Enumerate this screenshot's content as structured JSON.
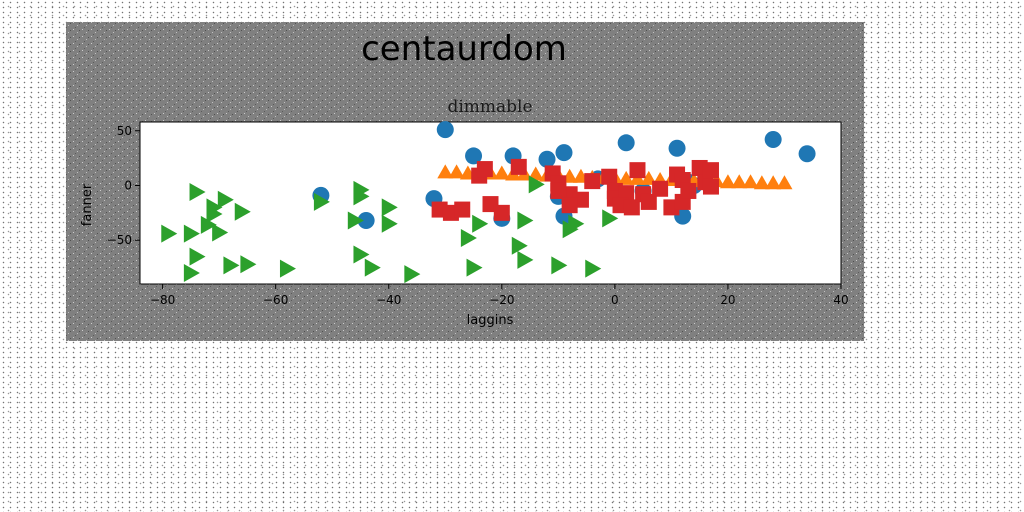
{
  "figure": {
    "suptitle": "centaurdom"
  },
  "chart_data": {
    "type": "scatter",
    "title": "dimmable",
    "xlabel": "laggins",
    "ylabel": "fanner",
    "xlim": [
      -84,
      40
    ],
    "ylim": [
      -90,
      58
    ],
    "xticks": [
      -80,
      -60,
      -40,
      -20,
      0,
      20,
      40
    ],
    "yticks": [
      -50,
      0,
      50
    ],
    "grid": false,
    "legend": "none",
    "colors": {
      "figure_bg": "#808080",
      "axes_bg": "#ffffff",
      "blue": "#1f77b4",
      "orange": "#ff7f0e",
      "green": "#2ca02c",
      "red": "#d62728"
    },
    "series": [
      {
        "marker": "circle",
        "color": "#1f77b4",
        "points": [
          [
            -30,
            51
          ],
          [
            -25,
            27
          ],
          [
            -18,
            27
          ],
          [
            -12,
            24
          ],
          [
            -9,
            30
          ],
          [
            2,
            39
          ],
          [
            11,
            34
          ],
          [
            28,
            42
          ],
          [
            34,
            29
          ],
          [
            -52,
            -9
          ],
          [
            -32,
            -12
          ],
          [
            -44,
            -32
          ],
          [
            -20,
            -30
          ],
          [
            -10,
            -10
          ],
          [
            -9,
            -28
          ],
          [
            -3,
            6
          ],
          [
            5,
            -5
          ],
          [
            12,
            -28
          ],
          [
            13,
            3
          ],
          [
            14,
            0
          ]
        ]
      },
      {
        "marker": "triangle-up",
        "color": "#ff7f0e",
        "points": [
          [
            -30,
            12
          ],
          [
            -28,
            12
          ],
          [
            -26,
            11
          ],
          [
            -24,
            11
          ],
          [
            -22,
            11
          ],
          [
            -20,
            11
          ],
          [
            -18,
            10
          ],
          [
            -16,
            10
          ],
          [
            -14,
            10
          ],
          [
            -12,
            9
          ],
          [
            -10,
            9
          ],
          [
            -8,
            8
          ],
          [
            -6,
            8
          ],
          [
            -4,
            7
          ],
          [
            -2,
            7
          ],
          [
            0,
            7
          ],
          [
            2,
            6
          ],
          [
            4,
            6
          ],
          [
            6,
            6
          ],
          [
            8,
            5
          ],
          [
            10,
            5
          ],
          [
            12,
            5
          ],
          [
            14,
            4
          ],
          [
            16,
            4
          ],
          [
            18,
            4
          ],
          [
            20,
            3
          ],
          [
            22,
            3
          ],
          [
            24,
            3
          ],
          [
            26,
            2
          ],
          [
            28,
            2
          ],
          [
            30,
            2
          ]
        ]
      },
      {
        "marker": "triangle-right",
        "color": "#2ca02c",
        "points": [
          [
            -74,
            -6
          ],
          [
            -69,
            -13
          ],
          [
            -71,
            -20
          ],
          [
            -71,
            -26
          ],
          [
            -66,
            -24
          ],
          [
            -72,
            -36
          ],
          [
            -70,
            -43
          ],
          [
            -75,
            -44
          ],
          [
            -79,
            -44
          ],
          [
            -74,
            -65
          ],
          [
            -68,
            -73
          ],
          [
            -65,
            -72
          ],
          [
            -75,
            -80
          ],
          [
            -58,
            -76
          ],
          [
            -52,
            -15
          ],
          [
            -45,
            -4
          ],
          [
            -45,
            -10
          ],
          [
            -40,
            -20
          ],
          [
            -40,
            -35
          ],
          [
            -46,
            -32
          ],
          [
            -45,
            -63
          ],
          [
            -43,
            -75
          ],
          [
            -36,
            -81
          ],
          [
            -26,
            -48
          ],
          [
            -24,
            -35
          ],
          [
            -17,
            -55
          ],
          [
            -16,
            -68
          ],
          [
            -25,
            -75
          ],
          [
            -16,
            -32
          ],
          [
            -14,
            1
          ],
          [
            -10,
            -73
          ],
          [
            -7,
            -35
          ],
          [
            -4,
            -76
          ],
          [
            -8,
            -40
          ],
          [
            -1,
            -30
          ]
        ]
      },
      {
        "marker": "square",
        "color": "#d62728",
        "points": [
          [
            -31,
            -22
          ],
          [
            -29,
            -25
          ],
          [
            -27,
            -22
          ],
          [
            -22,
            -17
          ],
          [
            -20,
            -25
          ],
          [
            -24,
            9
          ],
          [
            -23,
            15
          ],
          [
            -17,
            17
          ],
          [
            -11,
            11
          ],
          [
            -10,
            2
          ],
          [
            -8,
            -8
          ],
          [
            -6,
            -13
          ],
          [
            -10,
            -5
          ],
          [
            -8,
            -18
          ],
          [
            -4,
            4
          ],
          [
            -1,
            8
          ],
          [
            0,
            -5
          ],
          [
            0,
            -12
          ],
          [
            2,
            -7
          ],
          [
            1,
            -18
          ],
          [
            3,
            -20
          ],
          [
            4,
            14
          ],
          [
            5,
            -8
          ],
          [
            6,
            -15
          ],
          [
            8,
            -3
          ],
          [
            10,
            -20
          ],
          [
            11,
            10
          ],
          [
            12,
            5
          ],
          [
            12,
            -15
          ],
          [
            13,
            -5
          ],
          [
            15,
            16
          ],
          [
            16,
            3
          ],
          [
            17,
            14
          ],
          [
            17,
            -1
          ]
        ]
      }
    ]
  }
}
